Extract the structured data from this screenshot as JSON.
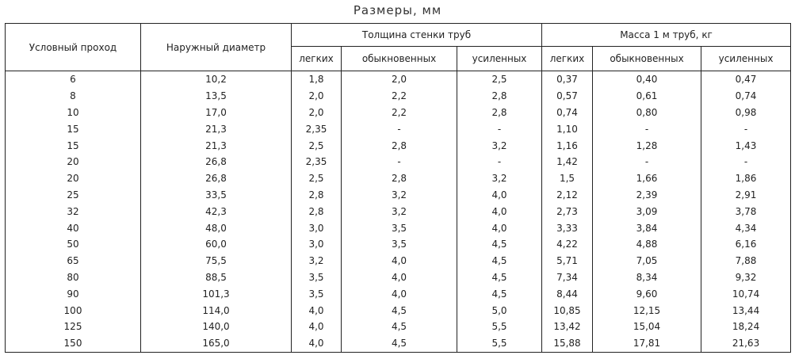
{
  "title": "Размеры, мм",
  "header": {
    "col_dn": "Условный проход",
    "col_od": "Наружный диаметр",
    "group_wall": "Толщина стенки труб",
    "group_mass": "Масса 1 м труб, кг",
    "sub": [
      "легких",
      "обыкновенных",
      "усиленных",
      "легких",
      "обыкновенных",
      "усиленных"
    ]
  },
  "rows": [
    [
      "6",
      "10,2",
      "1,8",
      "2,0",
      "2,5",
      "0,37",
      "0,40",
      "0,47"
    ],
    [
      "8",
      "13,5",
      "2,0",
      "2,2",
      "2,8",
      "0,57",
      "0,61",
      "0,74"
    ],
    [
      "10",
      "17,0",
      "2,0",
      "2,2",
      "2,8",
      "0,74",
      "0,80",
      "0,98"
    ],
    [
      "15",
      "21,3",
      "2,35",
      "-",
      "-",
      "1,10",
      "-",
      "-"
    ],
    [
      "15",
      "21,3",
      "2,5",
      "2,8",
      "3,2",
      "1,16",
      "1,28",
      "1,43"
    ],
    [
      "20",
      "26,8",
      "2,35",
      "-",
      "-",
      "1,42",
      "-",
      "-"
    ],
    [
      "20",
      "26,8",
      "2,5",
      "2,8",
      "3,2",
      "1,5",
      "1,66",
      "1,86"
    ],
    [
      "25",
      "33,5",
      "2,8",
      "3,2",
      "4,0",
      "2,12",
      "2,39",
      "2,91"
    ],
    [
      "32",
      "42,3",
      "2,8",
      "3,2",
      "4,0",
      "2,73",
      "3,09",
      "3,78"
    ],
    [
      "40",
      "48,0",
      "3,0",
      "3,5",
      "4,0",
      "3,33",
      "3,84",
      "4,34"
    ],
    [
      "50",
      "60,0",
      "3,0",
      "3,5",
      "4,5",
      "4,22",
      "4,88",
      "6,16"
    ],
    [
      "65",
      "75,5",
      "3,2",
      "4,0",
      "4,5",
      "5,71",
      "7,05",
      "7,88"
    ],
    [
      "80",
      "88,5",
      "3,5",
      "4,0",
      "4,5",
      "7,34",
      "8,34",
      "9,32"
    ],
    [
      "90",
      "101,3",
      "3,5",
      "4,0",
      "4,5",
      "8,44",
      "9,60",
      "10,74"
    ],
    [
      "100",
      "114,0",
      "4,0",
      "4,5",
      "5,0",
      "10,85",
      "12,15",
      "13,44"
    ],
    [
      "125",
      "140,0",
      "4,0",
      "4,5",
      "5,5",
      "13,42",
      "15,04",
      "18,24"
    ],
    [
      "150",
      "165,0",
      "4,0",
      "4,5",
      "5,5",
      "15,88",
      "17,81",
      "21,63"
    ]
  ]
}
